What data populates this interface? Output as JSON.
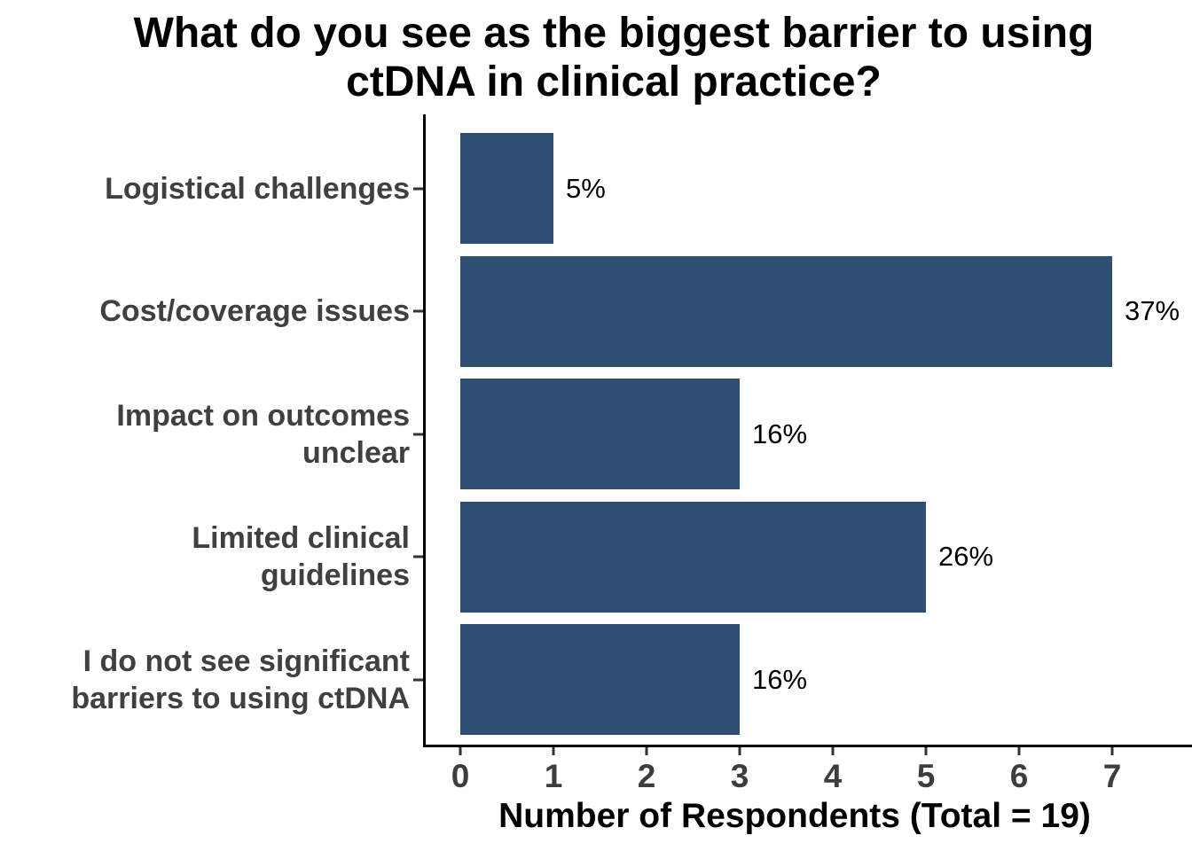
{
  "title": {
    "line1": "What do you see as the biggest barrier to using",
    "line2": "ctDNA in clinical practice?"
  },
  "y_axis": {
    "labels": [
      {
        "lines": [
          "Logistical challenges"
        ]
      },
      {
        "lines": [
          "Cost/coverage issues"
        ]
      },
      {
        "lines": [
          "Impact on outcomes",
          "unclear"
        ]
      },
      {
        "lines": [
          "Limited clinical",
          "guidelines"
        ]
      },
      {
        "lines": [
          "I do not see significant",
          "barriers to using ctDNA"
        ]
      }
    ]
  },
  "x_axis": {
    "ticks": [
      "0",
      "1",
      "2",
      "3",
      "4",
      "5",
      "6",
      "7"
    ],
    "title": "Number of Respondents (Total = 19)"
  },
  "value_labels": [
    "5%",
    "37%",
    "16%",
    "26%",
    "16%"
  ],
  "chart_data": {
    "type": "bar",
    "orientation": "horizontal",
    "title": "What do you see as the biggest barrier to using ctDNA in clinical practice?",
    "categories": [
      "Logistical challenges",
      "Cost/coverage issues",
      "Impact on outcomes unclear",
      "Limited clinical guidelines",
      "I do not see significant barriers to using ctDNA"
    ],
    "values": [
      1,
      7,
      3,
      5,
      3
    ],
    "percent_labels": [
      "5%",
      "37%",
      "16%",
      "26%",
      "16%"
    ],
    "total_respondents": 19,
    "xlabel": "Number of Respondents (Total = 19)",
    "x_ticks": [
      0,
      1,
      2,
      3,
      4,
      5,
      6,
      7
    ],
    "xlim": [
      0,
      7.9
    ],
    "bar_color": "#2C4F73",
    "axis_text_color": "#404040",
    "grid": false,
    "legend_position": "none"
  }
}
